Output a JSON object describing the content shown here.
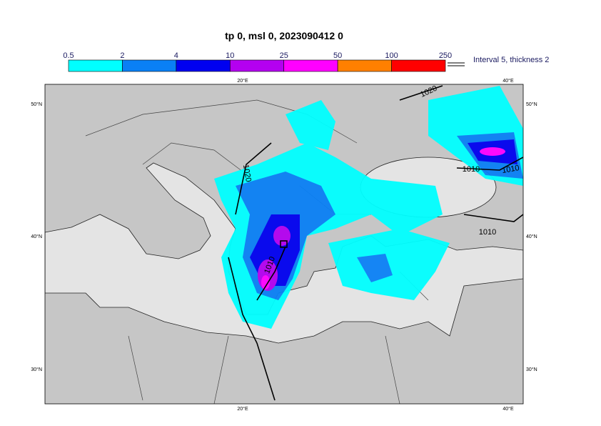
{
  "title": "tp 0, msl 0, 2023090412 0",
  "colorbar": {
    "levels": [
      "0.5",
      "2",
      "4",
      "10",
      "25",
      "50",
      "100",
      "250"
    ],
    "colors": [
      "#00ffff",
      "#0a80f5",
      "#0000f0",
      "#b400f0",
      "#ff00ff",
      "#ff8000",
      "#ff0000"
    ]
  },
  "contour_legend": "Interval 5, thickness 2",
  "axis_labels": {
    "top": [
      "20°E",
      "40°E"
    ],
    "bottom": [
      "20°E",
      "40°E"
    ],
    "left": [
      "50°N",
      "40°N",
      "30°N"
    ],
    "right": [
      "50°N",
      "40°N",
      "30°N"
    ]
  },
  "contour_labels": [
    "1020",
    "1020",
    "1010",
    "1010",
    "1010",
    "1010"
  ]
}
